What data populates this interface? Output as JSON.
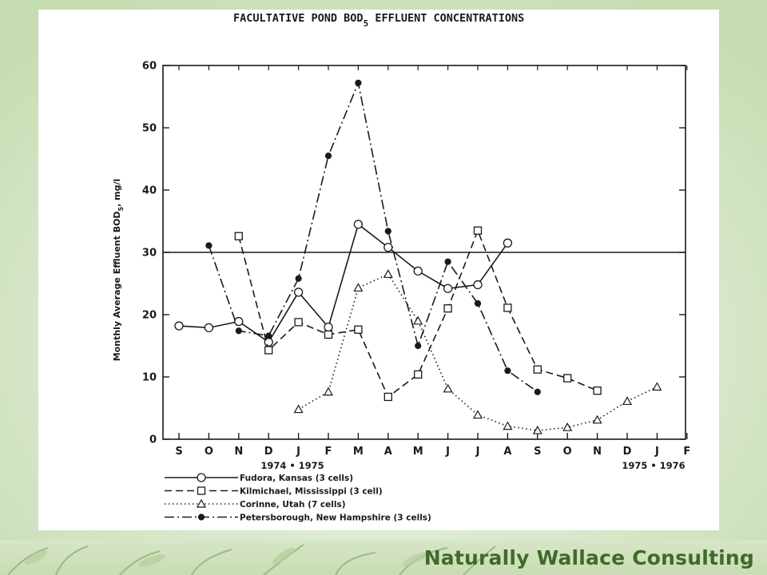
{
  "footer": {
    "brand": "Naturally Wallace Consulting"
  },
  "colors": {
    "ink": "#1a1a1a",
    "brand_green": "#3f6b2a",
    "slide_green": "#cfe3bd"
  },
  "chart_data": {
    "type": "line",
    "title_main": "FACULTATIVE POND BOD",
    "title_sub": "5",
    "title_tail": " EFFLUENT CONCENTRATIONS",
    "ylabel": "Monthly Average Effluent BOD",
    "ylabel_sub": "5",
    "ylabel_tail": ", mg/l",
    "ylim": [
      0,
      60
    ],
    "yticks": [
      "0",
      "10",
      "20",
      "30",
      "40",
      "50",
      "60"
    ],
    "month_labels": [
      "S",
      "O",
      "N",
      "D",
      "J",
      "F",
      "M",
      "A",
      "M",
      "J",
      "J",
      "A",
      "S",
      "O",
      "N",
      "D",
      "J",
      "F"
    ],
    "period_left": "1974 • 1975",
    "period_right": "1975 • 1976",
    "reference_line": 30,
    "grid": false,
    "legend_position": "bottom",
    "series": [
      {
        "name": "Fudora, Kansas (3 cells)",
        "style": "solid",
        "marker": "open-circle",
        "x": [
          0,
          1,
          2,
          3,
          4,
          5,
          6,
          7,
          8,
          9,
          10,
          11
        ],
        "y": [
          18.2,
          17.9,
          18.9,
          15.6,
          23.6,
          18.0,
          34.5,
          30.8,
          27.0,
          24.2,
          24.8,
          31.5
        ]
      },
      {
        "name": "Kilmichael, Mississippi (3 cell)",
        "style": "dashed",
        "marker": "open-square",
        "x": [
          2,
          3,
          4,
          5,
          6,
          7,
          8,
          9,
          10,
          11,
          12,
          13,
          14
        ],
        "y": [
          32.6,
          14.3,
          18.8,
          16.8,
          17.6,
          6.8,
          10.4,
          21.0,
          33.5,
          21.1,
          11.2,
          9.8,
          7.8
        ]
      },
      {
        "name": "Corinne, Utah (7 cells)",
        "style": "dotted",
        "marker": "open-triangle",
        "x": [
          4,
          5,
          6,
          7,
          8,
          9,
          10,
          11,
          12,
          13,
          14,
          15,
          16
        ],
        "y": [
          4.8,
          7.6,
          24.3,
          26.5,
          19.0,
          8.1,
          3.9,
          2.1,
          1.4,
          1.9,
          3.1,
          6.1,
          8.4
        ]
      },
      {
        "name": "Petersborough, New Hampshire (3 cells)",
        "style": "dashdot",
        "marker": "filled-circle",
        "x": [
          1,
          2,
          3,
          4,
          5,
          6,
          7,
          8,
          9,
          10,
          11,
          12
        ],
        "y": [
          31.1,
          17.4,
          16.6,
          25.8,
          45.5,
          57.2,
          33.4,
          15.0,
          28.5,
          21.8,
          11.0,
          7.6
        ]
      }
    ]
  }
}
